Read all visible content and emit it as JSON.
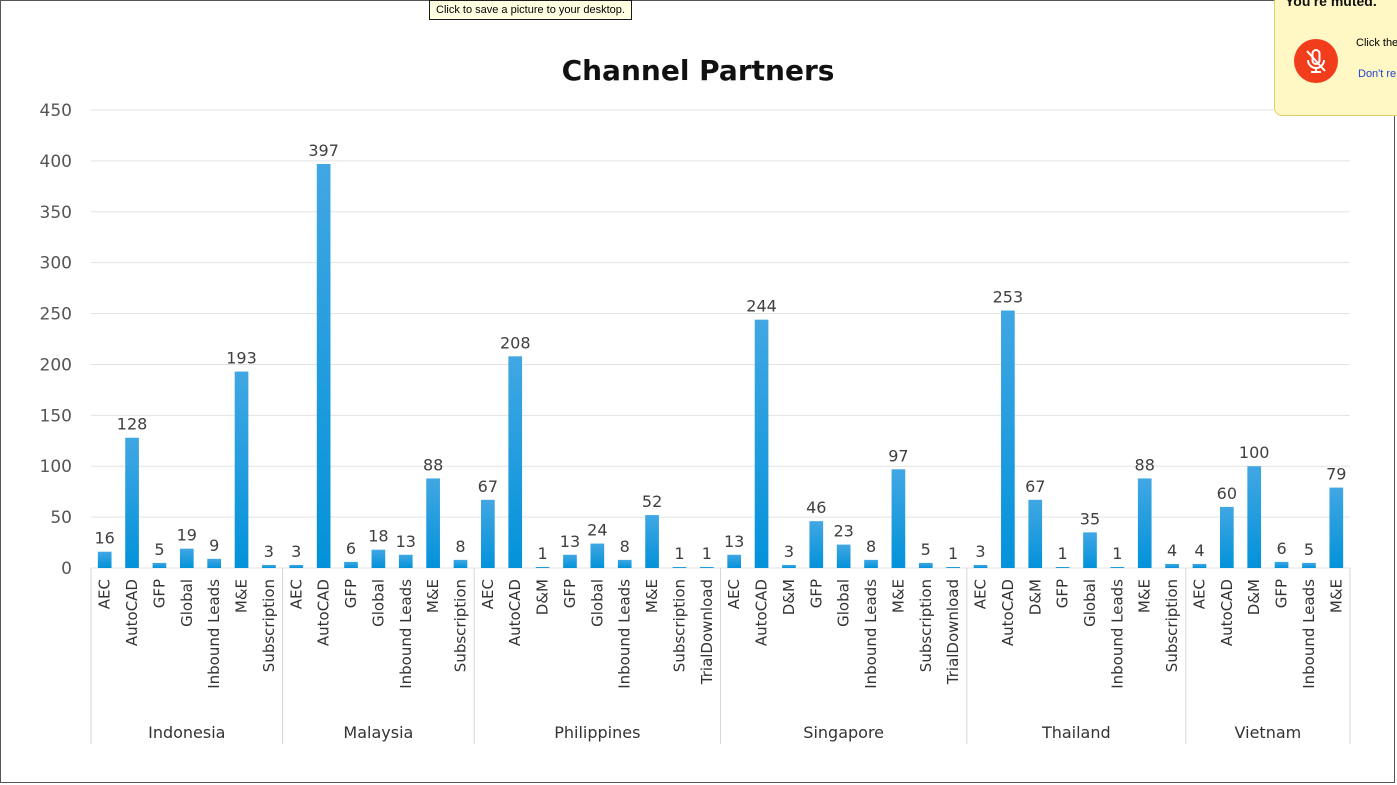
{
  "tooltip": {
    "text": "Click to save a picture to your desktop."
  },
  "mute_popup": {
    "title": "You're muted.",
    "body": "Click the",
    "link": "Don't re",
    "icon": "microphone-muted-icon",
    "icon_color": "#f23d1d"
  },
  "chart_data": {
    "type": "bar",
    "title": "Channel Partners",
    "xlabel": "",
    "ylabel": "",
    "ylim": [
      0,
      450
    ],
    "yticks": [
      0,
      50,
      100,
      150,
      200,
      250,
      300,
      350,
      400,
      450
    ],
    "grid": true,
    "legend": "none",
    "bar_color": "#0a97de",
    "groups": [
      {
        "name": "Indonesia",
        "categories": [
          "AEC",
          "AutoCAD",
          "GFP",
          "Global",
          "Inbound Leads",
          "M&E",
          "Subscription"
        ],
        "values": [
          16,
          128,
          5,
          19,
          9,
          193,
          3
        ]
      },
      {
        "name": "Malaysia",
        "categories": [
          "AEC",
          "AutoCAD",
          "GFP",
          "Global",
          "Inbound Leads",
          "M&E",
          "Subscription"
        ],
        "values": [
          3,
          397,
          6,
          18,
          13,
          88,
          8
        ]
      },
      {
        "name": "Philippines",
        "categories": [
          "AEC",
          "AutoCAD",
          "D&M",
          "GFP",
          "Global",
          "Inbound Leads",
          "M&E",
          "Subscription",
          "TrialDownload"
        ],
        "values": [
          67,
          208,
          1,
          13,
          24,
          8,
          52,
          1,
          1
        ]
      },
      {
        "name": "Singapore",
        "categories": [
          "AEC",
          "AutoCAD",
          "D&M",
          "GFP",
          "Global",
          "Inbound Leads",
          "M&E",
          "Subscription",
          "TrialDownload"
        ],
        "values": [
          13,
          244,
          3,
          46,
          23,
          8,
          97,
          5,
          1
        ]
      },
      {
        "name": "Thailand",
        "categories": [
          "AEC",
          "AutoCAD",
          "D&M",
          "GFP",
          "Global",
          "Inbound Leads",
          "M&E",
          "Subscription"
        ],
        "values": [
          3,
          253,
          67,
          1,
          35,
          1,
          88,
          4
        ]
      },
      {
        "name": "Vietnam",
        "categories": [
          "AEC",
          "AutoCAD",
          "D&M",
          "GFP",
          "Inbound Leads",
          "M&E"
        ],
        "values": [
          4,
          60,
          100,
          6,
          5,
          79
        ]
      }
    ]
  }
}
